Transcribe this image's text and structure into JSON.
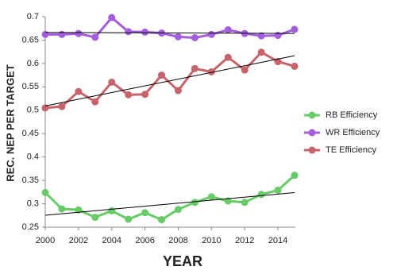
{
  "chart_data": {
    "type": "line",
    "x_label": "YEAR",
    "y_label": "REC. NEP PER TARGET",
    "x": [
      2000,
      2001,
      2002,
      2003,
      2004,
      2005,
      2006,
      2007,
      2008,
      2009,
      2010,
      2011,
      2012,
      2013,
      2014,
      2015
    ],
    "series": [
      {
        "name": "RB Efficiency",
        "color": "#66cc66",
        "values": [
          0.324,
          0.289,
          0.287,
          0.271,
          0.285,
          0.267,
          0.281,
          0.266,
          0.288,
          0.303,
          0.315,
          0.306,
          0.303,
          0.32,
          0.329,
          0.361
        ]
      },
      {
        "name": "WR Efficiency",
        "color": "#a55de0",
        "values": [
          0.662,
          0.662,
          0.664,
          0.656,
          0.698,
          0.668,
          0.667,
          0.665,
          0.657,
          0.655,
          0.662,
          0.672,
          0.664,
          0.659,
          0.66,
          0.673
        ]
      },
      {
        "name": "TE Efficiency",
        "color": "#c9636b",
        "values": [
          0.505,
          0.508,
          0.54,
          0.518,
          0.56,
          0.533,
          0.534,
          0.575,
          0.542,
          0.589,
          0.582,
          0.613,
          0.586,
          0.624,
          0.604,
          0.594
        ]
      }
    ],
    "xlim": [
      2000,
      2015
    ],
    "xticks": [
      2000,
      2002,
      2004,
      2006,
      2008,
      2010,
      2012,
      2014
    ],
    "ylim": [
      0.25,
      0.7
    ],
    "yticks": [
      0.25,
      0.3,
      0.35,
      0.4,
      0.45,
      0.5,
      0.55,
      0.6,
      0.65,
      0.7
    ],
    "trendline": true,
    "trendline_color": "#000000",
    "legend": "right",
    "grid": false
  }
}
